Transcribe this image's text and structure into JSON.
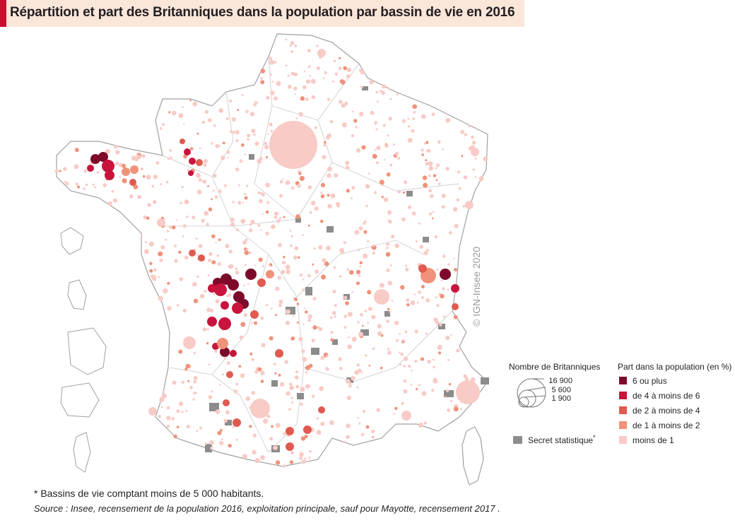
{
  "title": "Répartition et part des Britanniques dans la population par bassin de vie en 2016",
  "credit": "© IGN-Insee 2020",
  "legend": {
    "size_title": "Nombre de Britanniques",
    "size_values": [
      "16 900",
      "5 600",
      "1 900"
    ],
    "color_title": "Part dans la population (en %)",
    "classes": [
      {
        "label": "6 ou plus",
        "color": "#7d0a2a"
      },
      {
        "label": "de 4 à moins de 6",
        "color": "#c8143c"
      },
      {
        "label": "de 2 à moins de 4",
        "color": "#e05a50"
      },
      {
        "label": "de 1 à moins de 2",
        "color": "#f0927a"
      },
      {
        "label": "moins de 1",
        "color": "#f8cbc6"
      }
    ],
    "secret_label": "Secret statistique",
    "secret_mark": "*",
    "secret_color": "#8c8c8c"
  },
  "footnote": "* Bassins de vie comptant moins de 5 000 habitants.",
  "source": "Source : Insee, recensement de la population 2016, exploitation principale, sauf pour Mayotte, recensement 2017 ."
}
